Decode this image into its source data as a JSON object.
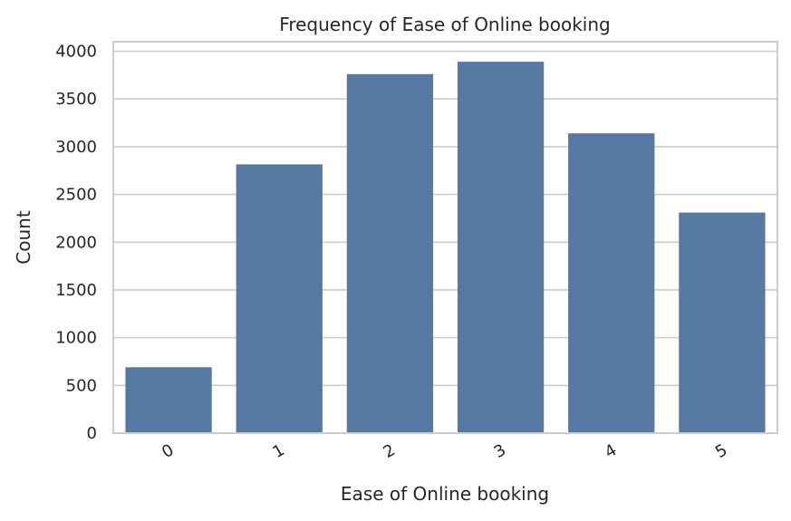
{
  "chart_data": {
    "type": "bar",
    "title": "Frequency of Ease of Online booking",
    "xlabel": "Ease of Online booking",
    "ylabel": "Count",
    "categories": [
      "0",
      "1",
      "2",
      "3",
      "4",
      "5"
    ],
    "values": [
      690,
      2815,
      3760,
      3890,
      3140,
      2310
    ],
    "ylim": [
      0,
      4100
    ],
    "yticks": [
      0,
      500,
      1000,
      1500,
      2000,
      2500,
      3000,
      3500,
      4000
    ],
    "grid": "y",
    "bar_color": "#5778a0",
    "grid_color": "#cccccc",
    "background": "#ffffff"
  }
}
